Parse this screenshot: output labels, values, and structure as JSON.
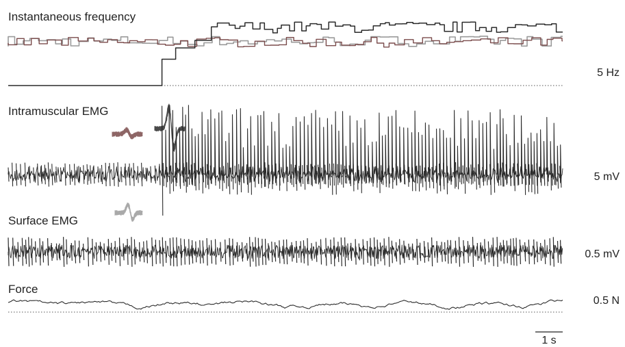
{
  "chart_data": [
    {
      "type": "line",
      "title": "Instantaneous frequency",
      "scale_label": "5 Hz",
      "series": [
        {
          "color": "#2a2a2a",
          "mean_hz": 15.5,
          "spread_hz": 1.5,
          "start_s": 2.8,
          "start_from_hz": 0,
          "start_ramp_to_hz": 7
        },
        {
          "color": "#7a4b4b",
          "mean_hz": 11.5,
          "spread_hz": 1.3
        },
        {
          "color": "#9a9a9a",
          "mean_hz": 11.8,
          "spread_hz": 1.4
        }
      ],
      "ylim": [
        0,
        20
      ],
      "baseline": "dotted"
    },
    {
      "type": "line",
      "title": "Intramuscular EMG",
      "scale_label": "5 mV",
      "series": [
        {
          "color": "#2a2a2a",
          "small_spike_rate_hz": 14,
          "large_spike_start_s": 2.8,
          "large_spike_rate_hz": 15.5
        }
      ],
      "inset_waveforms": [
        {
          "color": "#7a4b4b",
          "size": "small"
        },
        {
          "color": "#2a2a2a",
          "size": "large"
        }
      ]
    },
    {
      "type": "line",
      "title": "Surface EMG",
      "scale_label": "0.5 mV",
      "series": [
        {
          "color": "#2a2a2a",
          "burst_rate_hz": 14
        }
      ],
      "inset_waveforms": [
        {
          "color": "#9a9a9a",
          "size": "medium"
        }
      ]
    },
    {
      "type": "line",
      "title": "Force",
      "scale_label": "0.5 N",
      "series": [
        {
          "color": "#2a2a2a",
          "mean_n": 0.25,
          "fluctuation_n": 0.1
        }
      ],
      "baseline": "dotted"
    }
  ],
  "time_scale_bar": {
    "label": "1 s",
    "duration_s": 1
  },
  "duration_s": 10.1
}
